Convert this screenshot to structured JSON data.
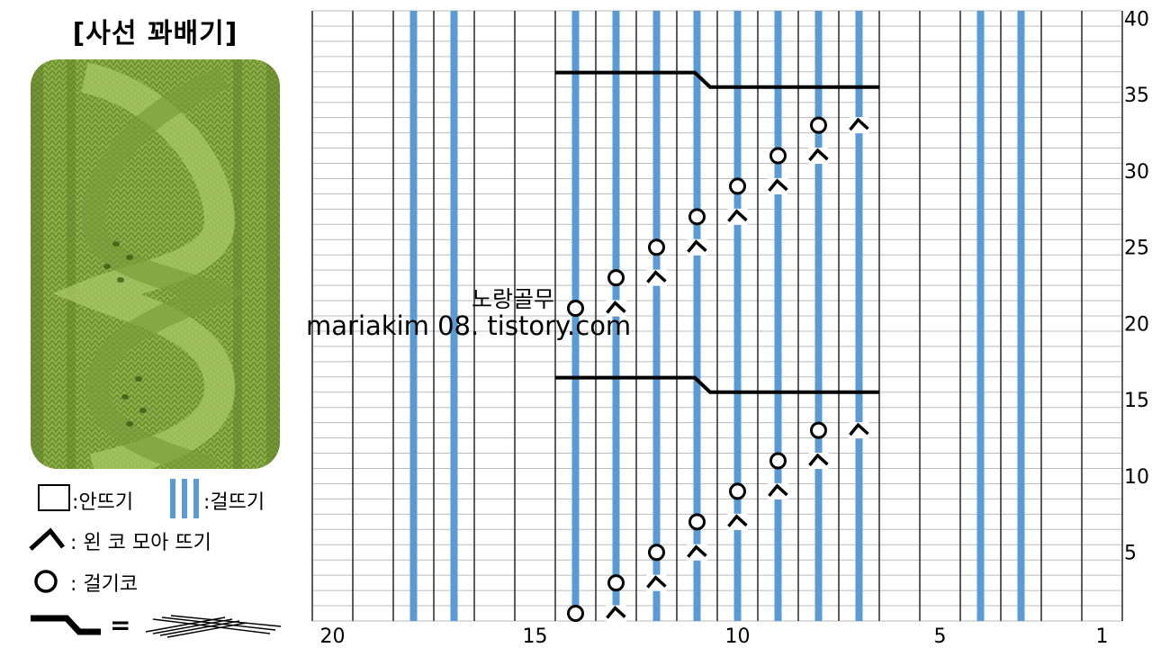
{
  "title": "[사선 꽈배기]",
  "legend": {
    "purl_label": ":안뜨기",
    "knit_label": ":걸뜨기",
    "k2tog_label": ": 왼 코 모아 뜨기",
    "yo_label": ": 걸기코",
    "cable_equals": "="
  },
  "watermark": {
    "line1": "노랑골무",
    "line2": "mariakim 08. tistory.com"
  },
  "chart_data": {
    "type": "knitting-chart",
    "columns": 20,
    "rows": 40,
    "column_labels": [
      "20",
      "15",
      "10",
      "5",
      "1"
    ],
    "row_labels": [
      "40",
      "35",
      "30",
      "25",
      "20",
      "15",
      "10",
      "5"
    ],
    "knit_columns": [
      3,
      4,
      7,
      8,
      9,
      10,
      11,
      12,
      13,
      14,
      17,
      18
    ],
    "stitch_symbols": {
      "yo": "circle",
      "k2tog": "left-slant"
    },
    "lace_pairs": [
      {
        "row": 1,
        "yo_col": 14,
        "k2tog_col": 13
      },
      {
        "row": 3,
        "yo_col": 13,
        "k2tog_col": 12
      },
      {
        "row": 5,
        "yo_col": 12,
        "k2tog_col": 11
      },
      {
        "row": 7,
        "yo_col": 11,
        "k2tog_col": 10
      },
      {
        "row": 9,
        "yo_col": 10,
        "k2tog_col": 9
      },
      {
        "row": 11,
        "yo_col": 9,
        "k2tog_col": 8
      },
      {
        "row": 13,
        "yo_col": 8,
        "k2tog_col": 7
      },
      {
        "row": 21,
        "yo_col": 14,
        "k2tog_col": 13
      },
      {
        "row": 23,
        "yo_col": 13,
        "k2tog_col": 12
      },
      {
        "row": 25,
        "yo_col": 12,
        "k2tog_col": 11
      },
      {
        "row": 27,
        "yo_col": 11,
        "k2tog_col": 10
      },
      {
        "row": 29,
        "yo_col": 10,
        "k2tog_col": 9
      },
      {
        "row": 31,
        "yo_col": 9,
        "k2tog_col": 8
      },
      {
        "row": 33,
        "yo_col": 8,
        "k2tog_col": 7
      }
    ],
    "cable_crossings": [
      {
        "row": 16,
        "from_col": 14,
        "to_col": 7
      },
      {
        "row": 36,
        "from_col": 14,
        "to_col": 7
      }
    ],
    "colors": {
      "knit": "#5b9bd5",
      "grid_major": "#333333",
      "grid_minor": "#bbbbbb",
      "cable": "#000000",
      "photo": "#8db04a"
    }
  }
}
